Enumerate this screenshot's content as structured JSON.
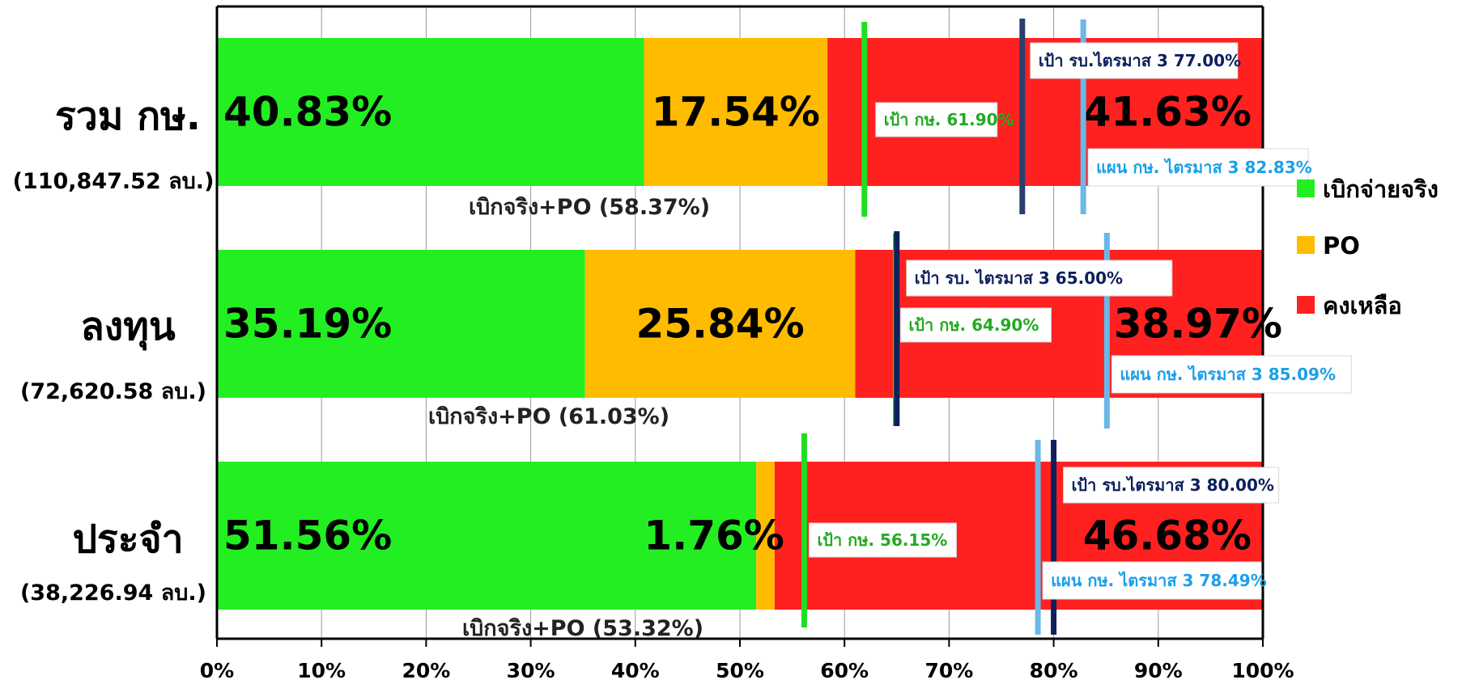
{
  "chart_data": {
    "type": "bar",
    "orientation": "horizontal",
    "stacked": true,
    "xlim": [
      0,
      100
    ],
    "xticks": [
      "0%",
      "10%",
      "20%",
      "30%",
      "40%",
      "50%",
      "60%",
      "70%",
      "80%",
      "90%",
      "100%"
    ],
    "grid": "vertical",
    "legend_position": "right",
    "categories": [
      {
        "name": "รวม กษ.",
        "amount": "(110,847.52 ลบ.)"
      },
      {
        "name": "ลงทุน",
        "amount": "(72,620.58 ลบ.)"
      },
      {
        "name": "ประจำ",
        "amount": "(38,226.94 ลบ.)"
      }
    ],
    "series": [
      {
        "name": "เบิกจ่ายจริง",
        "color": "#22ee22",
        "values": [
          40.83,
          35.19,
          51.56
        ],
        "labels": [
          "40.83%",
          "35.19%",
          "51.56%"
        ]
      },
      {
        "name": "PO",
        "color": "#ffbb00",
        "values": [
          17.54,
          25.84,
          1.76
        ],
        "labels": [
          "17.54%",
          "25.84%",
          "1.76%"
        ]
      },
      {
        "name": "คงเหลือ",
        "color": "#ff2020",
        "values": [
          41.63,
          38.97,
          46.68
        ],
        "labels": [
          "41.63%",
          "38.97%",
          "46.68%"
        ]
      }
    ],
    "sum_labels": [
      "เบิกจริง+PO  (58.37%)",
      "เบิกจริง+PO (61.03%)",
      "เบิกจริง+PO  (53.32%)"
    ],
    "markers": [
      [
        {
          "kind": "target_ks",
          "value": 61.9,
          "label": "เป้า กษ. 61.90%",
          "color": "#22dd22",
          "text_color": "#22aa22"
        },
        {
          "kind": "target_gov",
          "value": 77.0,
          "label": "เป้า รบ.ไตรมาส 3 77.00%",
          "color": "#2a3f6e",
          "text_color": "#0d1f5c"
        },
        {
          "kind": "plan_ks",
          "value": 82.83,
          "label": "แผน กษ. ไตรมาส 3 82.83%",
          "color": "#6ab7e8",
          "text_color": "#1aa0e8"
        }
      ],
      [
        {
          "kind": "target_ks",
          "value": 64.9,
          "label": "เป้า กษ. 64.90%",
          "color": "#22dd22",
          "text_color": "#22aa22"
        },
        {
          "kind": "target_gov",
          "value": 65.0,
          "label": "เป้า รบ. ไตรมาส 3 65.00%",
          "color": "#0d1f5c",
          "text_color": "#0d1f5c"
        },
        {
          "kind": "plan_ks",
          "value": 85.09,
          "label": "แผน กษ. ไตรมาส 3  85.09%",
          "color": "#6ab7e8",
          "text_color": "#1aa0e8"
        }
      ],
      [
        {
          "kind": "target_ks",
          "value": 56.15,
          "label": "เป้า กษ. 56.15%",
          "color": "#22dd22",
          "text_color": "#22aa22"
        },
        {
          "kind": "target_gov",
          "value": 80.0,
          "label": "เป้า รบ.ไตรมาส 3 80.00%",
          "color": "#0d1f5c",
          "text_color": "#0d1f5c"
        },
        {
          "kind": "plan_ks",
          "value": 78.49,
          "label": "แผน กษ. ไตรมาส 3  78.49%",
          "color": "#6ab7e8",
          "text_color": "#1aa0e8"
        }
      ]
    ]
  }
}
